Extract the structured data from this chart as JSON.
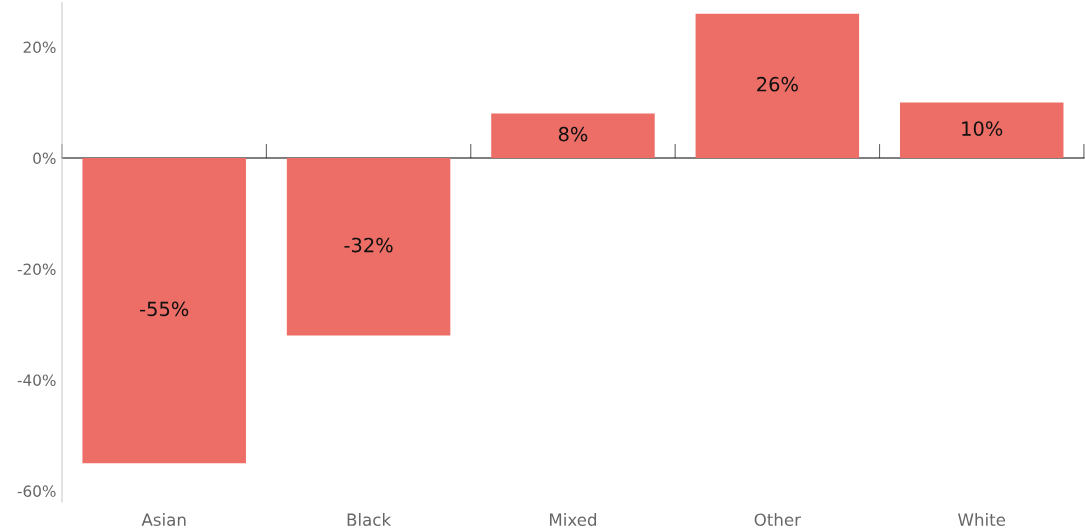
{
  "chart_data": {
    "type": "bar",
    "categories": [
      "Asian",
      "Black",
      "Mixed",
      "Other",
      "White"
    ],
    "values": [
      -55,
      -32,
      8,
      26,
      10
    ],
    "value_labels": [
      "-55%",
      "-32%",
      "8%",
      "26%",
      "10%"
    ],
    "color": "#ed6e66",
    "ylim": [
      -62,
      28
    ],
    "yticks": [
      {
        "value": -60,
        "label": "-60%"
      },
      {
        "value": -40,
        "label": "-40%"
      },
      {
        "value": -20,
        "label": "-20%"
      },
      {
        "value": 0,
        "label": "0%"
      },
      {
        "value": 20,
        "label": "20%"
      }
    ],
    "legend": false
  }
}
